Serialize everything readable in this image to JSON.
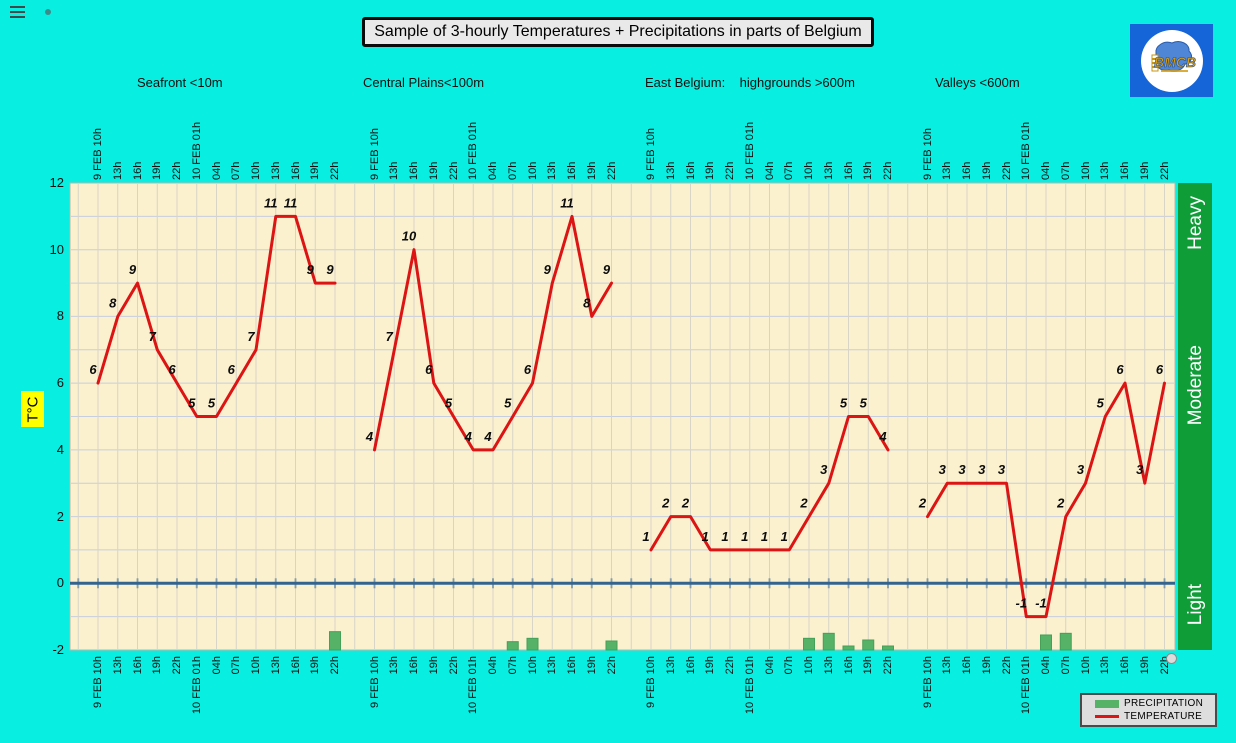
{
  "header": {
    "title": "Sample of 3-hourly Temperatures + Precipitations in parts of Belgium"
  },
  "logo": {
    "text": "BMCB"
  },
  "regions": [
    "Seafront <10m",
    "Central Plains<100m",
    "East Belgium:    highgrounds >600m",
    "Valleys <600m"
  ],
  "y_axis": {
    "label": "T°C",
    "ticks": [
      12,
      10,
      8,
      6,
      4,
      2,
      0,
      -2
    ]
  },
  "precip_axis": {
    "bands": [
      "Heavy",
      "Moderate",
      "Light"
    ]
  },
  "legend": {
    "items": [
      {
        "label": "PRECIPITATION",
        "swatch": "bar",
        "color": "#55b266"
      },
      {
        "label": "TEMPERATURE",
        "swatch": "line",
        "color": "#dc1414"
      }
    ]
  },
  "chart_data": {
    "type": "line",
    "title": "Sample of 3-hourly Temperatures + Precipitations in parts of Belgium",
    "ylabel": "T°C",
    "ylim": [
      -2,
      12
    ],
    "grid": true,
    "legend_position": "bottom-right",
    "x_categories": [
      "9 FEB 10h",
      "13h",
      "16h",
      "19h",
      "22h",
      "10 FEB 01h",
      "04h",
      "07h",
      "10h",
      "13h",
      "16h",
      "19h",
      "22h"
    ],
    "groups": [
      {
        "name": "Seafront <10m",
        "temperature": [
          6,
          8,
          9,
          7,
          6,
          5,
          5,
          6,
          7,
          11,
          11,
          9,
          9
        ],
        "precipitation": [
          0,
          0,
          0,
          0,
          0,
          0,
          0,
          0,
          0,
          0,
          0,
          0,
          0.55
        ]
      },
      {
        "name": "Central Plains<100m",
        "temperature": [
          4,
          7,
          10,
          6,
          5,
          4,
          4,
          5,
          6,
          9,
          11,
          8,
          9
        ],
        "precipitation": [
          0,
          0,
          0,
          0,
          0,
          0,
          0,
          0.25,
          0.35,
          0,
          0,
          0,
          0.27
        ]
      },
      {
        "name": "East Belgium: highgrounds >600m",
        "temperature": [
          1,
          2,
          2,
          1,
          1,
          1,
          1,
          1,
          2,
          3,
          5,
          5,
          4
        ],
        "precipitation": [
          0,
          0,
          0,
          0,
          0,
          0,
          0,
          0,
          0.35,
          0.5,
          0.12,
          0.3,
          0.12
        ]
      },
      {
        "name": "Valleys <600m",
        "temperature": [
          2,
          3,
          3,
          3,
          3,
          -1,
          -1,
          2,
          3,
          5,
          6,
          3,
          6
        ],
        "precipitation": [
          0,
          0,
          0,
          0,
          0,
          0,
          0.45,
          0.5,
          0,
          0,
          0,
          0,
          0
        ]
      }
    ],
    "colors": {
      "background": "#08efe2",
      "plot_bg": "#fbf1ce",
      "temperature": "#dc1414",
      "precipitation": "#55b266",
      "zero_line": "#33638f",
      "band": "#0f9d38",
      "ylabel_bg": "#ffff00"
    }
  }
}
